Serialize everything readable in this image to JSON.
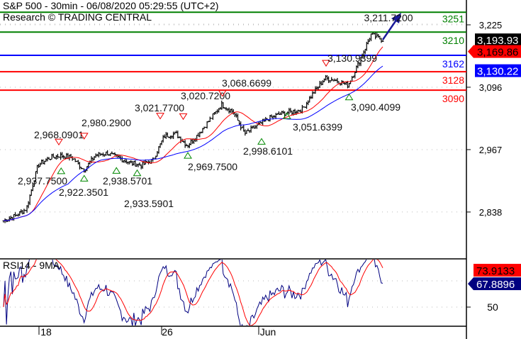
{
  "header": {
    "title": "S&P 500 - 30min - 06/08/2020 05:29:55 (UTC+2)",
    "subtitle": "Research © TRADING CENTRAL"
  },
  "chart_data": {
    "type": "ohlc",
    "title": "S&P 500 - 30min - 06/08/2020 05:29:55 (UTC+2)",
    "closes": [
      2820,
      2830,
      2845,
      2935,
      2950,
      2955,
      2950,
      2925,
      2955,
      2960,
      2950,
      2940,
      2935,
      2945,
      2995,
      3000,
      2975,
      3000,
      3030,
      3060,
      3045,
      3000,
      3015,
      3030,
      3040,
      3045,
      3050,
      3085,
      3115,
      3110,
      3100,
      3150,
      3205,
      3194
    ],
    "yaxis": {
      "ticks": [
        "3,225",
        "3,096",
        "2,967",
        "2,838"
      ],
      "tick_values": [
        3225,
        3096,
        2967,
        2838
      ]
    },
    "xaxis": {
      "ticks": [
        "18",
        "26",
        "Jun"
      ]
    },
    "levels": [
      {
        "value": 3251,
        "label": "3251",
        "color": "#008000"
      },
      {
        "value": 3210,
        "label": "3210",
        "color": "#008000"
      },
      {
        "value": 3162,
        "label": "3162",
        "color": "#0000ff"
      },
      {
        "value": 3128,
        "label": "3128",
        "color": "#ff0000"
      },
      {
        "value": 3090,
        "label": "3090",
        "color": "#ff0000"
      }
    ],
    "price_tags": [
      {
        "value": 3193.93,
        "label": "3,193.93",
        "bg": "#000000"
      },
      {
        "value": 3169.86,
        "label": "3,169.86",
        "bg": "#ff0000"
      },
      {
        "value": 3130.22,
        "label": "3,130.22",
        "bg": "#0000ff"
      }
    ],
    "annotations": [
      {
        "label": "2,968.0901",
        "value": 2968.09,
        "type": "high",
        "pos": 0.12
      },
      {
        "label": "2,980.2900",
        "value": 2980.29,
        "type": "high",
        "pos": 0.175
      },
      {
        "label": "2,937.7500",
        "value": 2937.75,
        "type": "low",
        "pos": 0.125
      },
      {
        "label": "2,922.3501",
        "value": 2922.35,
        "type": "low",
        "pos": 0.175
      },
      {
        "label": "2,938.5701",
        "value": 2938.57,
        "type": "low",
        "pos": 0.245
      },
      {
        "label": "2,933.5901",
        "value": 2933.59,
        "type": "low",
        "pos": 0.29
      },
      {
        "label": "3,021.7700",
        "value": 3021.77,
        "type": "high",
        "pos": 0.34
      },
      {
        "label": "3,020.7200",
        "value": 3020.72,
        "type": "high",
        "pos": 0.39
      },
      {
        "label": "3,068.6699",
        "value": 3068.67,
        "type": "high",
        "pos": 0.475
      },
      {
        "label": "2,969.7500",
        "value": 2969.75,
        "type": "low",
        "pos": 0.4
      },
      {
        "label": "2,998.6101",
        "value": 2998.61,
        "type": "low",
        "pos": 0.56
      },
      {
        "label": "3,051.6399",
        "value": 3051.64,
        "type": "low",
        "pos": 0.615
      },
      {
        "label": "3,130.9399",
        "value": 3130.94,
        "type": "high",
        "pos": 0.7
      },
      {
        "label": "3,090.4099",
        "value": 3090.41,
        "type": "low",
        "pos": 0.75
      },
      {
        "label": "3,211.7200",
        "value": 3211.72,
        "type": "label",
        "pos": 0.82
      }
    ],
    "ma_colors": {
      "fast": "#ff0000",
      "slow": "#0000ff"
    },
    "rsi": {
      "title": "RSI14 - 9MA",
      "tick": "50",
      "value": "67.8896",
      "ma_value": "73.9133",
      "value_color": "#000080",
      "ma_color": "#ff0000"
    }
  }
}
